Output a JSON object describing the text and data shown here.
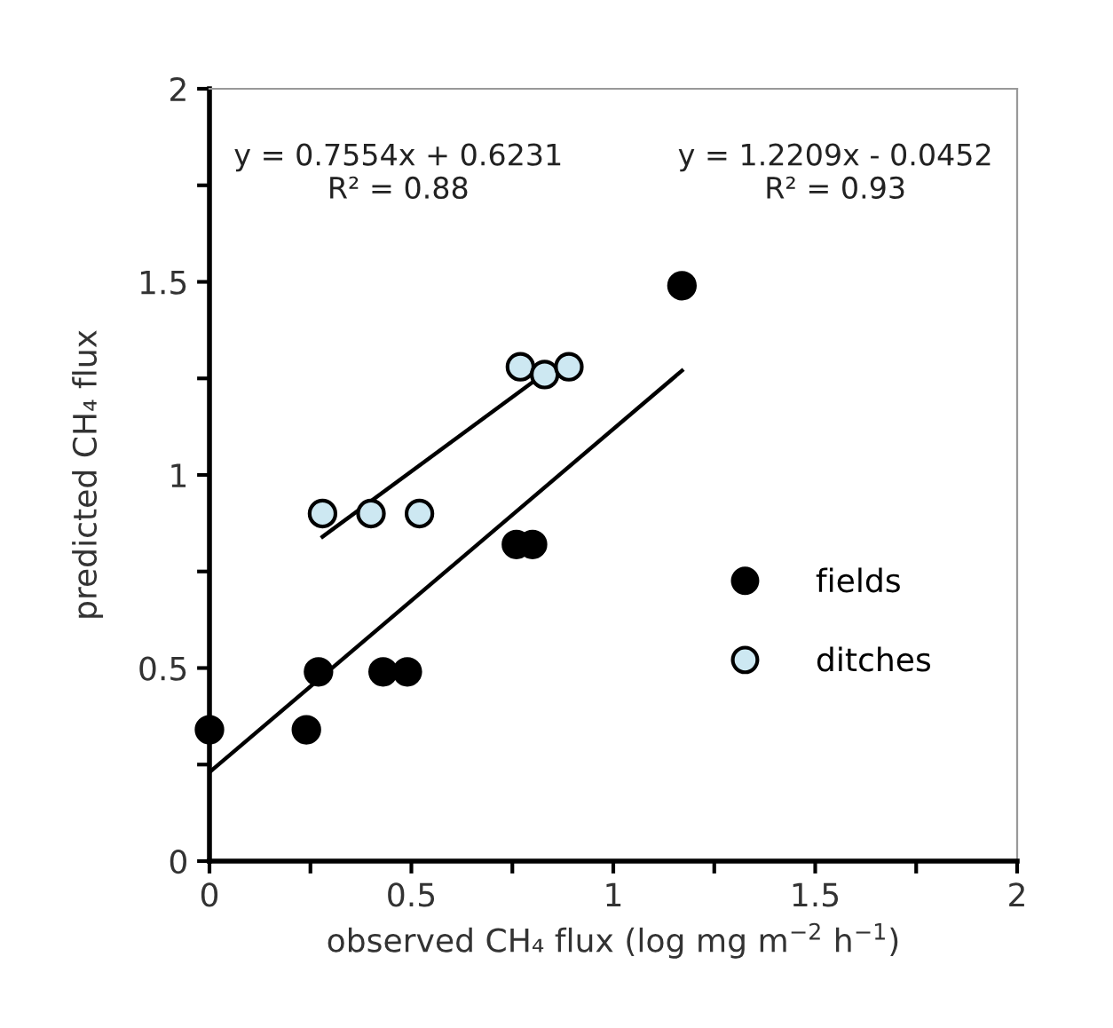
{
  "chart_data": {
    "type": "scatter",
    "xlabel": "observed CH₄ flux (log mg m$^{−2}$ h$^{−1}$)",
    "ylabel": "predicted CH₄ flux",
    "annotations": [
      "y = 0.7554x + 0.6231\nR² = 0.88",
      "y = 1.2209x - 0.0452\nR² = 0.93"
    ],
    "series": [
      {
        "name": "fields",
        "color": "#000000",
        "x": [
          0,
          0.24,
          0.27,
          0.43,
          0.49,
          0.76,
          0.8,
          1.17
        ],
        "values": [
          0.34,
          0.34,
          0.49,
          0.49,
          0.49,
          0.82,
          0.82,
          1.49
        ]
      },
      {
        "name": "ditches",
        "color": "#cde8f2",
        "x": [
          0.28,
          0.4,
          0.52,
          0.77,
          0.83,
          0.89
        ],
        "values": [
          0.9,
          0.9,
          0.9,
          1.28,
          1.26,
          1.28
        ]
      },
      {
        "type": "line",
        "marker": "none",
        "color": "#000000",
        "x": [
          0,
          1.17
        ],
        "values": [
          0.23,
          1.27
        ]
      },
      {
        "type": "line",
        "marker": "none",
        "color": "#000000",
        "x": [
          0.28,
          0.8
        ],
        "values": [
          0.84,
          1.24
        ]
      }
    ],
    "marker": "circle",
    "xlim": [
      0,
      2
    ],
    "ylim": [
      0,
      2
    ],
    "xticks": [
      0,
      {
        "value": 0.25,
        "label": null
      },
      {
        "value": 0.5,
        "label": "0.5"
      },
      {
        "value": 0.75,
        "label": null
      },
      1,
      {
        "value": 1.25,
        "label": null
      },
      {
        "value": 1.5,
        "label": "1.5"
      },
      {
        "value": 1.75,
        "label": null
      },
      2
    ],
    "yticks": [
      0,
      {
        "value": 0.25,
        "label": null
      },
      {
        "value": 0.5,
        "label": "0.5"
      },
      {
        "value": 0.75,
        "label": null
      },
      1,
      {
        "value": 1.25,
        "label": null
      },
      {
        "value": 1.5,
        "label": "1.5"
      },
      {
        "value": 1.75,
        "label": null
      },
      2
    ],
    "grid": false,
    "legend": "bottom right"
  }
}
